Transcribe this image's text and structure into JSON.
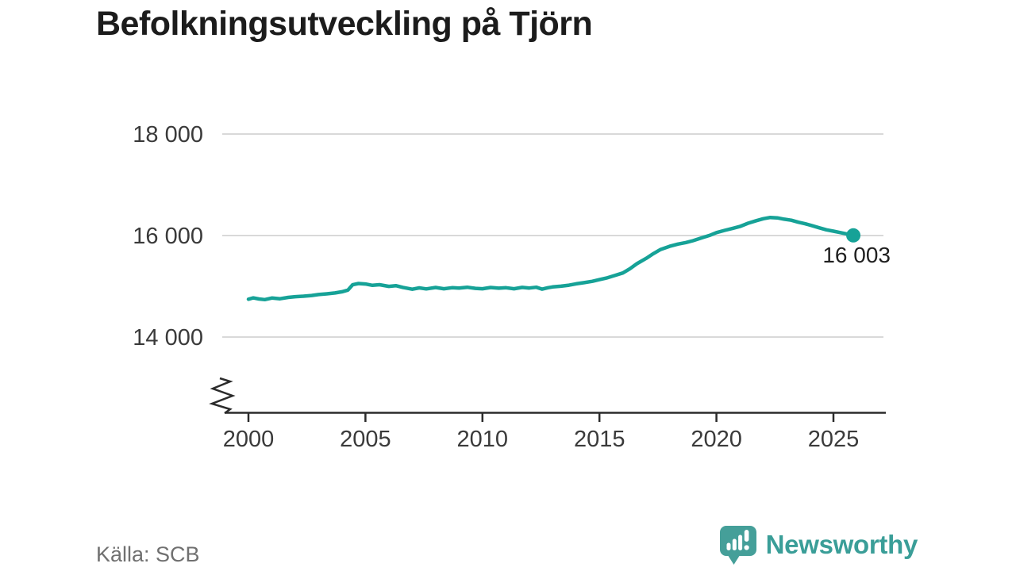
{
  "chart_data": {
    "type": "line",
    "title": "Befolkningsutveckling på Tjörn",
    "xlabel": "",
    "ylabel": "",
    "x_tick_labels": [
      "2000",
      "2005",
      "2010",
      "2015",
      "2020",
      "2025"
    ],
    "x_tick_years": [
      2000,
      2005,
      2010,
      2015,
      2020,
      2025
    ],
    "y_tick_labels": [
      "14 000",
      "16 000",
      "18 000"
    ],
    "y_tick_values": [
      14000,
      16000,
      18000
    ],
    "xlim": [
      1999,
      2027.2
    ],
    "ylim": [
      13500,
      18600
    ],
    "grid": "horizontal-only",
    "legend_position": "none",
    "axis_break": true,
    "line_color": "#16a297",
    "grid_color": "#d9d9d9",
    "axis_color": "#2b2b2b",
    "tick_label_color": "#3a3a3a",
    "annotation_color": "#1f1f1f",
    "last_point_label": "16 003",
    "last_point_value": 16003,
    "series": [
      {
        "name": "Befolkning",
        "points": [
          [
            2000.0,
            14745
          ],
          [
            2000.2,
            14772
          ],
          [
            2000.45,
            14750
          ],
          [
            2000.7,
            14737
          ],
          [
            2001.0,
            14768
          ],
          [
            2001.35,
            14755
          ],
          [
            2001.7,
            14782
          ],
          [
            2002.0,
            14795
          ],
          [
            2002.35,
            14805
          ],
          [
            2002.7,
            14818
          ],
          [
            2003.0,
            14838
          ],
          [
            2003.35,
            14852
          ],
          [
            2003.7,
            14868
          ],
          [
            2004.0,
            14892
          ],
          [
            2004.25,
            14925
          ],
          [
            2004.45,
            15030
          ],
          [
            2004.7,
            15055
          ],
          [
            2005.0,
            15045
          ],
          [
            2005.3,
            15018
          ],
          [
            2005.6,
            15032
          ],
          [
            2006.0,
            14998
          ],
          [
            2006.3,
            15012
          ],
          [
            2006.6,
            14978
          ],
          [
            2007.0,
            14942
          ],
          [
            2007.3,
            14968
          ],
          [
            2007.6,
            14948
          ],
          [
            2008.0,
            14976
          ],
          [
            2008.35,
            14952
          ],
          [
            2008.7,
            14972
          ],
          [
            2009.0,
            14966
          ],
          [
            2009.35,
            14982
          ],
          [
            2009.7,
            14960
          ],
          [
            2010.0,
            14952
          ],
          [
            2010.35,
            14976
          ],
          [
            2010.7,
            14962
          ],
          [
            2011.0,
            14972
          ],
          [
            2011.35,
            14952
          ],
          [
            2011.7,
            14978
          ],
          [
            2012.0,
            14966
          ],
          [
            2012.3,
            14982
          ],
          [
            2012.55,
            14944
          ],
          [
            2012.8,
            14972
          ],
          [
            2013.0,
            14988
          ],
          [
            2013.35,
            15002
          ],
          [
            2013.7,
            15022
          ],
          [
            2014.0,
            15048
          ],
          [
            2014.35,
            15072
          ],
          [
            2014.7,
            15098
          ],
          [
            2015.0,
            15132
          ],
          [
            2015.3,
            15162
          ],
          [
            2015.6,
            15205
          ],
          [
            2016.0,
            15262
          ],
          [
            2016.3,
            15345
          ],
          [
            2016.6,
            15445
          ],
          [
            2017.0,
            15552
          ],
          [
            2017.3,
            15642
          ],
          [
            2017.6,
            15722
          ],
          [
            2018.0,
            15788
          ],
          [
            2018.35,
            15832
          ],
          [
            2018.7,
            15862
          ],
          [
            2019.0,
            15898
          ],
          [
            2019.35,
            15952
          ],
          [
            2019.7,
            16002
          ],
          [
            2020.0,
            16058
          ],
          [
            2020.35,
            16102
          ],
          [
            2020.7,
            16142
          ],
          [
            2021.0,
            16178
          ],
          [
            2021.35,
            16242
          ],
          [
            2021.7,
            16292
          ],
          [
            2022.0,
            16332
          ],
          [
            2022.3,
            16356
          ],
          [
            2022.6,
            16348
          ],
          [
            2022.9,
            16322
          ],
          [
            2023.2,
            16302
          ],
          [
            2023.5,
            16262
          ],
          [
            2023.8,
            16232
          ],
          [
            2024.1,
            16192
          ],
          [
            2024.4,
            16152
          ],
          [
            2024.7,
            16112
          ],
          [
            2025.0,
            16086
          ],
          [
            2025.3,
            16058
          ],
          [
            2025.6,
            16028
          ],
          [
            2025.85,
            16003
          ]
        ]
      }
    ]
  },
  "footer": {
    "source": "Källa: SCB"
  },
  "brand": {
    "name": "Newsworthy",
    "icon": "newsworthy-bar-chart-bubble-icon",
    "color": "#3a9e98",
    "icon_color": "#459f99"
  }
}
